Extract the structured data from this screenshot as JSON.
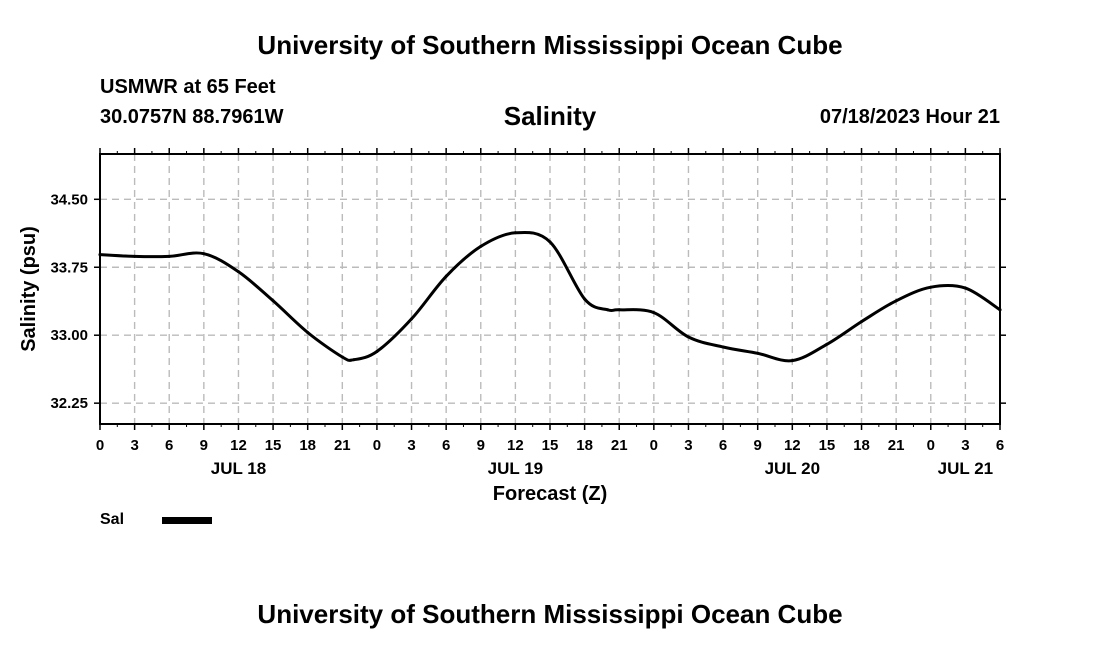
{
  "header": {
    "title": "University of Southern Mississippi Ocean Cube",
    "station": "USMWR at 65 Feet",
    "coords": "30.0757N  88.7961W",
    "parameter": "Salinity",
    "datetime": "07/18/2023 Hour 21",
    "footer_title": "University of Southern Mississippi Ocean Cube"
  },
  "chart_data": {
    "type": "line",
    "title": "Salinity",
    "xlabel": "Forecast (Z)",
    "ylabel": "Salinity (psu)",
    "ylim": [
      32.02,
      35.0
    ],
    "xlim": [
      0,
      78
    ],
    "x_unit": "hours from JUL 18 00Z",
    "y_ticks": [
      "32.25",
      "33.00",
      "33.75",
      "34.50"
    ],
    "x_ticks": [
      "0",
      "3",
      "6",
      "9",
      "12",
      "15",
      "18",
      "21",
      "0",
      "3",
      "6",
      "9",
      "12",
      "15",
      "18",
      "21",
      "0",
      "3",
      "6",
      "9",
      "12",
      "15",
      "18",
      "21",
      "0",
      "3",
      "6"
    ],
    "date_labels": [
      {
        "label": "JUL 18",
        "hour": 12
      },
      {
        "label": "JUL 19",
        "hour": 36
      },
      {
        "label": "JUL 20",
        "hour": 60
      },
      {
        "label": "JUL 21",
        "hour": 75
      }
    ],
    "grid": true,
    "series": [
      {
        "name": "Sal",
        "color": "#000000",
        "x": [
          0,
          3,
          6,
          9,
          12,
          15,
          18,
          21,
          22,
          24,
          27,
          30,
          33,
          36,
          39,
          42,
          44,
          45,
          48,
          51,
          54,
          57,
          60,
          63,
          66,
          69,
          72,
          75,
          78
        ],
        "y": [
          33.89,
          33.87,
          33.87,
          33.9,
          33.7,
          33.38,
          33.03,
          32.76,
          32.73,
          32.82,
          33.18,
          33.65,
          33.98,
          34.13,
          34.03,
          33.4,
          33.28,
          33.28,
          33.25,
          32.98,
          32.87,
          32.8,
          32.72,
          32.9,
          33.15,
          33.38,
          33.53,
          33.52,
          33.28
        ]
      }
    ],
    "legend": [
      {
        "label": "Sal",
        "color": "#000000"
      }
    ],
    "legend_position": "bottom-left"
  }
}
